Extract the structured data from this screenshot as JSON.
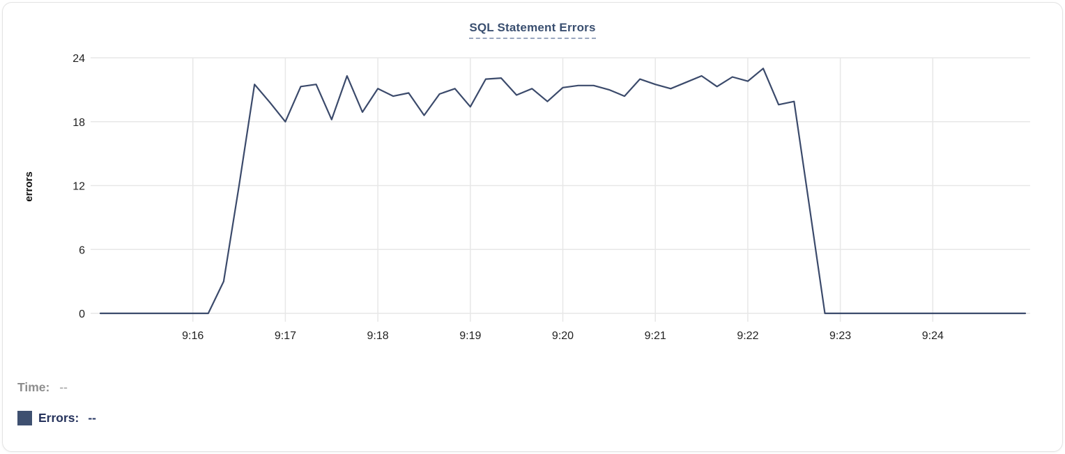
{
  "card": {
    "title": "SQL Statement Errors"
  },
  "tooltip": {
    "time_label": "Time:",
    "time_value": "--",
    "errors_label": "Errors:",
    "errors_value": "--"
  },
  "colors": {
    "series_line": "#3b4a6b",
    "title_text": "#3a4f70",
    "title_underline": "#9aa7bf",
    "grid": "#e7e7e7",
    "axis_text": "#1f1f1f",
    "y_axis_label_text": "#111111",
    "tooltip_label_muted": "#8e8e8e",
    "tooltip_value_muted": "#9a9a9a",
    "legend_text": "#26335c",
    "swatch": "#3e5070",
    "card_border": "#e3e3e3"
  },
  "chart_data": {
    "type": "line",
    "title": "SQL Statement Errors",
    "xlabel": "",
    "ylabel": "errors",
    "ylim": [
      0,
      24
    ],
    "yticks": [
      0,
      6,
      12,
      18,
      24
    ],
    "xticks": [
      "9:16",
      "9:17",
      "9:18",
      "9:19",
      "9:20",
      "9:21",
      "9:22",
      "9:23",
      "9:24"
    ],
    "x_range": [
      "9:15:00",
      "9:25:00"
    ],
    "grid": true,
    "legend_position": "bottom-left",
    "series": [
      {
        "name": "Errors",
        "color": "#3b4a6b",
        "x": [
          "9:15:00",
          "9:15:10",
          "9:15:20",
          "9:15:30",
          "9:15:40",
          "9:15:50",
          "9:16:00",
          "9:16:10",
          "9:16:20",
          "9:16:30",
          "9:16:40",
          "9:16:50",
          "9:17:00",
          "9:17:10",
          "9:17:20",
          "9:17:30",
          "9:17:40",
          "9:17:50",
          "9:18:00",
          "9:18:10",
          "9:18:20",
          "9:18:30",
          "9:18:40",
          "9:18:50",
          "9:19:00",
          "9:19:10",
          "9:19:20",
          "9:19:30",
          "9:19:40",
          "9:19:50",
          "9:20:00",
          "9:20:10",
          "9:20:20",
          "9:20:30",
          "9:20:40",
          "9:20:50",
          "9:21:00",
          "9:21:10",
          "9:21:20",
          "9:21:30",
          "9:21:40",
          "9:21:50",
          "9:22:00",
          "9:22:10",
          "9:22:20",
          "9:22:30",
          "9:22:40",
          "9:22:50",
          "9:23:00",
          "9:23:10",
          "9:23:20",
          "9:23:30",
          "9:23:40",
          "9:23:50",
          "9:24:00",
          "9:24:10",
          "9:24:20",
          "9:24:30",
          "9:24:40",
          "9:24:50",
          "9:25:00"
        ],
        "values": [
          0,
          0,
          0,
          0,
          0,
          0,
          0,
          0,
          3,
          12,
          21.5,
          19.8,
          18,
          21.3,
          21.5,
          18.2,
          22.3,
          18.9,
          21.1,
          20.4,
          20.7,
          18.6,
          20.6,
          21.1,
          19.4,
          22,
          22.1,
          20.5,
          21.1,
          19.9,
          21.2,
          21.4,
          21.4,
          21,
          20.4,
          22,
          21.5,
          21.1,
          21.7,
          22.3,
          21.3,
          22.2,
          21.8,
          23,
          19.6,
          19.9,
          10,
          0,
          0,
          0,
          0,
          0,
          0,
          0,
          0,
          0,
          0,
          0,
          0,
          0,
          0
        ]
      }
    ]
  }
}
